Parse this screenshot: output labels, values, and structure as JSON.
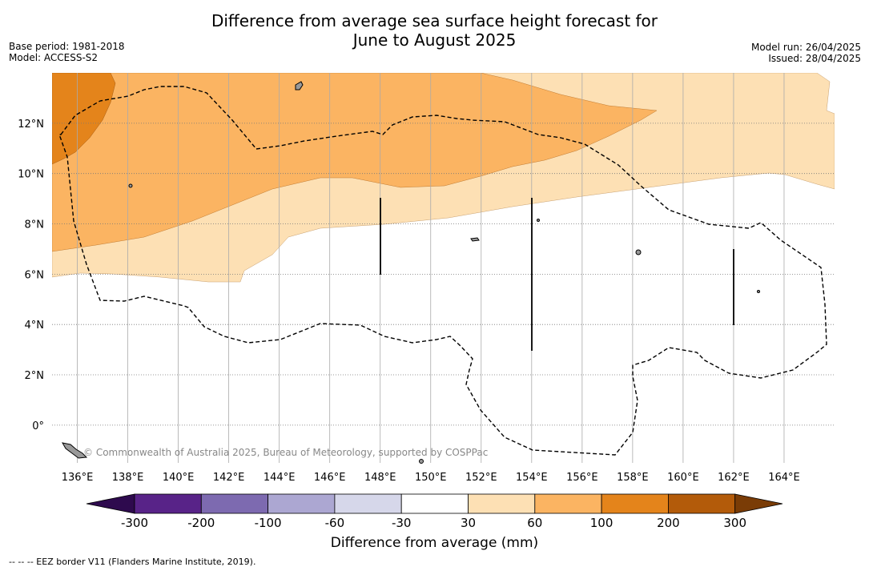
{
  "title": {
    "line1": "Difference from average sea surface height forecast for",
    "line2": "June to August 2025"
  },
  "meta_left": {
    "base_period": "Base period: 1981-2018",
    "model": "Model: ACCESS-S2"
  },
  "meta_right": {
    "model_run": "Model run: 26/04/2025",
    "issued": "Issued: 28/04/2025"
  },
  "map": {
    "lon_range": [
      135,
      166
    ],
    "lat_range": [
      -1.5,
      14
    ],
    "lon_ticks": [
      "136°E",
      "138°E",
      "140°E",
      "142°E",
      "144°E",
      "146°E",
      "148°E",
      "150°E",
      "152°E",
      "154°E",
      "156°E",
      "158°E",
      "160°E",
      "162°E",
      "164°E"
    ],
    "lat_ticks": [
      "0°",
      "2°N",
      "4°N",
      "6°N",
      "8°N",
      "10°N",
      "12°N"
    ],
    "credit": "© Commonwealth of Australia 2025, Bureau of Meteorology, supported by COSPPac"
  },
  "colorbar": {
    "ticks": [
      "-300",
      "-200",
      "-100",
      "-60",
      "-30",
      "30",
      "60",
      "100",
      "200",
      "300"
    ],
    "colors": [
      "#582388",
      "#7d6ab0",
      "#aca7d2",
      "#d6d7ea",
      "#ffffff",
      "#fde0b4",
      "#fbb462",
      "#e4841b",
      "#b35b0a"
    ],
    "under_color": "#2e0a4e",
    "over_color": "#7a3c06",
    "label": "Difference from average (mm)"
  },
  "legend_note": "--  --  -- EEZ border V11 (Flanders Marine Institute, 2019)."
}
